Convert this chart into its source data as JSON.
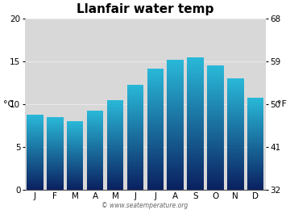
{
  "title": "Llanfair water temp",
  "months": [
    "J",
    "F",
    "M",
    "A",
    "M",
    "J",
    "J",
    "A",
    "S",
    "O",
    "N",
    "D"
  ],
  "values": [
    8.8,
    8.5,
    8.0,
    9.3,
    10.5,
    12.3,
    14.2,
    15.2,
    15.5,
    14.5,
    13.0,
    10.8
  ],
  "ylim_left": [
    0,
    20
  ],
  "ylim_right": [
    32,
    68
  ],
  "yticks_left": [
    0,
    5,
    10,
    15,
    20
  ],
  "yticks_right": [
    32,
    41,
    50,
    59,
    68
  ],
  "ylabel_left": "°C",
  "ylabel_right": "°F",
  "color_top": "#29b8d8",
  "color_bottom": "#0a2060",
  "bg_color": "#d8d8d8",
  "watermark": "© www.seatemperature.org",
  "title_fontsize": 11,
  "tick_fontsize": 7.5,
  "label_fontsize": 8,
  "bar_width": 0.82
}
